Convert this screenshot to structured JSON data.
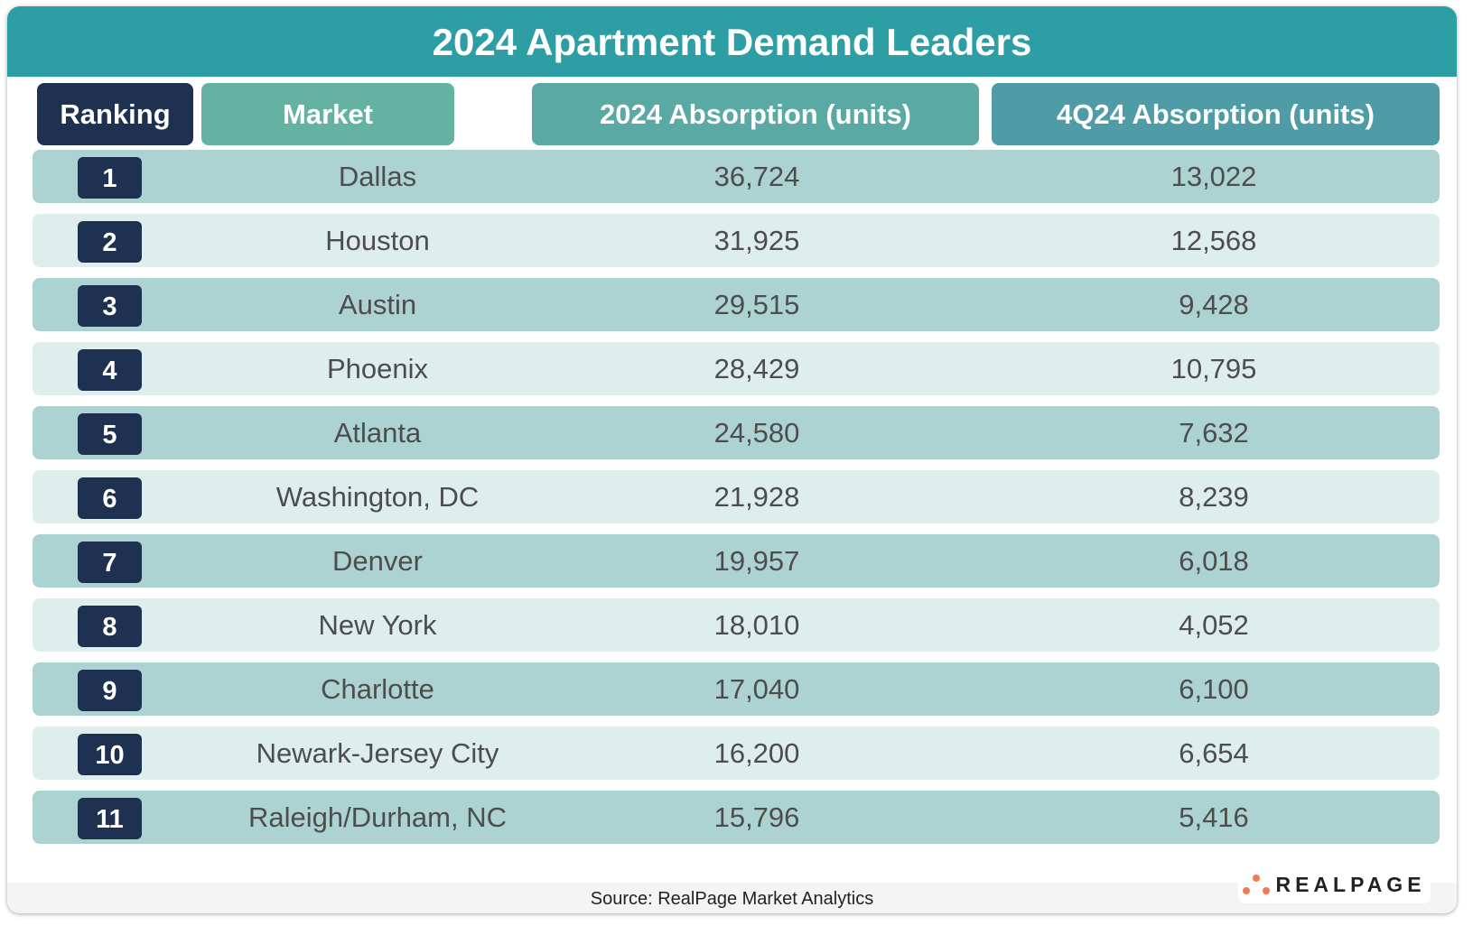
{
  "title": "2024 Apartment Demand Leaders",
  "headers": {
    "ranking": "Ranking",
    "market": "Market",
    "absorption_2024": "2024 Absorption (units)",
    "absorption_4q24": "4Q24 Absorption (units)"
  },
  "colors": {
    "title_bar": "#2e9ea5",
    "ranking_header": "#1e3150",
    "market_header": "#64b2a2",
    "absorption_2024_header": "#5aa9a5",
    "absorption_4q24_header": "#4f9ba6",
    "row_dark": "#acd3d2",
    "row_light": "#deeeed",
    "logo_dots": "#ef7c55"
  },
  "rows": [
    {
      "rank": "1",
      "market": "Dallas",
      "abs2024": "36,724",
      "abs4q24": "13,022"
    },
    {
      "rank": "2",
      "market": "Houston",
      "abs2024": "31,925",
      "abs4q24": "12,568"
    },
    {
      "rank": "3",
      "market": "Austin",
      "abs2024": "29,515",
      "abs4q24": "9,428"
    },
    {
      "rank": "4",
      "market": "Phoenix",
      "abs2024": "28,429",
      "abs4q24": "10,795"
    },
    {
      "rank": "5",
      "market": "Atlanta",
      "abs2024": "24,580",
      "abs4q24": "7,632"
    },
    {
      "rank": "6",
      "market": "Washington, DC",
      "abs2024": "21,928",
      "abs4q24": "8,239"
    },
    {
      "rank": "7",
      "market": "Denver",
      "abs2024": "19,957",
      "abs4q24": "6,018"
    },
    {
      "rank": "8",
      "market": "New York",
      "abs2024": "18,010",
      "abs4q24": "4,052"
    },
    {
      "rank": "9",
      "market": "Charlotte",
      "abs2024": "17,040",
      "abs4q24": "6,100"
    },
    {
      "rank": "10",
      "market": "Newark-Jersey City",
      "abs2024": "16,200",
      "abs4q24": "6,654"
    },
    {
      "rank": "11",
      "market": "Raleigh/Durham, NC",
      "abs2024": "15,796",
      "abs4q24": "5,416"
    }
  ],
  "footer": {
    "source": "Source: RealPage Market Analytics",
    "logo_text": "REALPAGE"
  }
}
